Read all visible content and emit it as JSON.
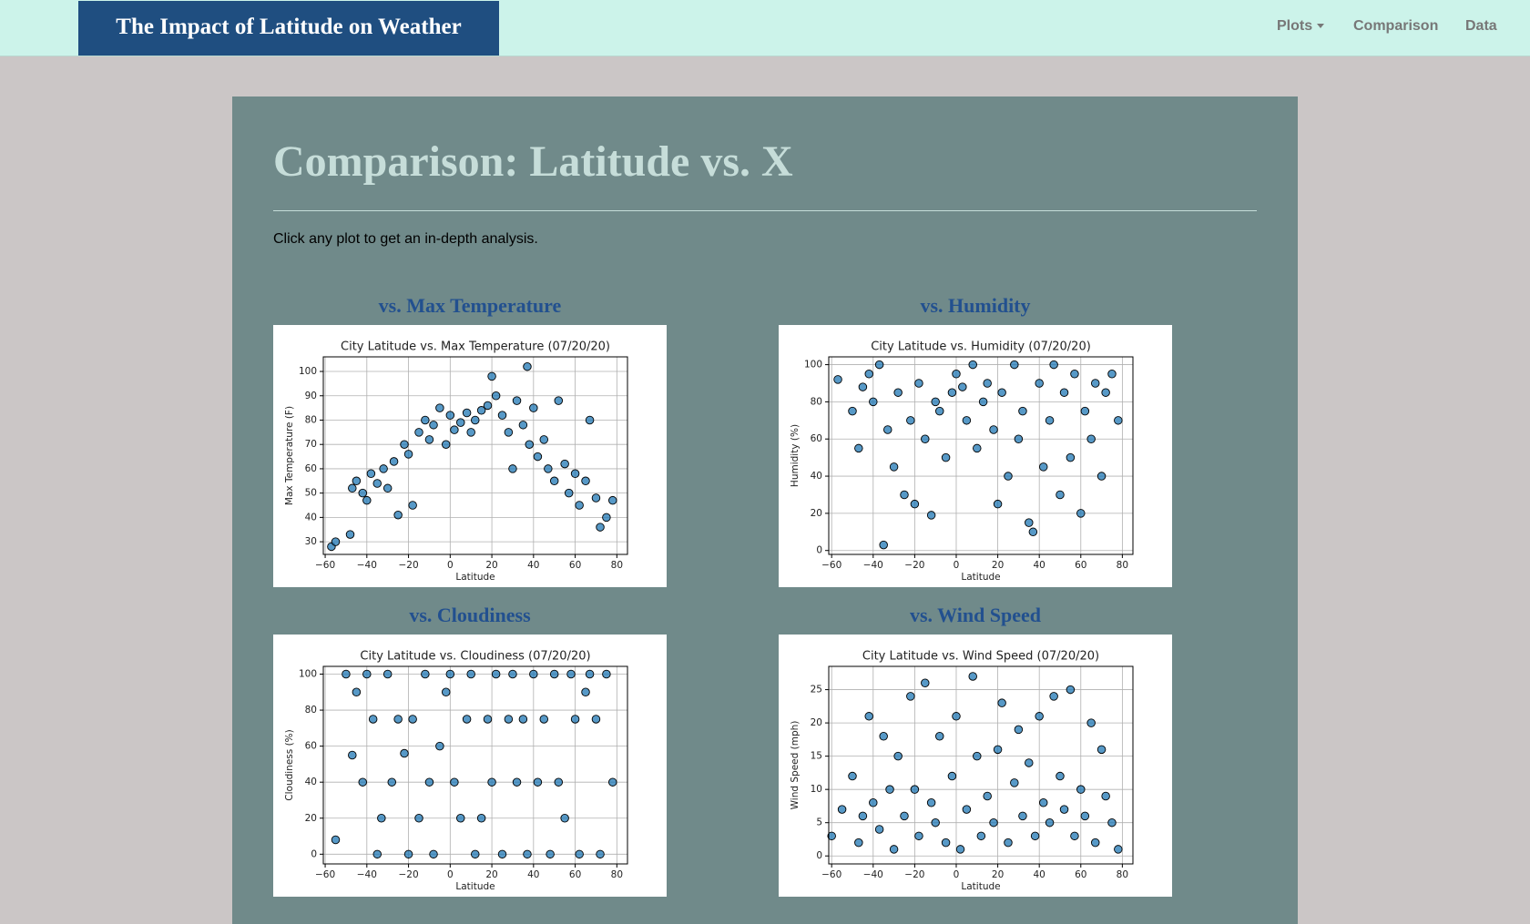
{
  "navbar": {
    "brand": "The Impact of Latitude on Weather",
    "items": [
      "Plots",
      "Comparison",
      "Data"
    ]
  },
  "heading": "Comparison: Latitude vs. X",
  "intro": "Click any plot to get an in-depth analysis.",
  "sections": [
    "vs. Max Temperature",
    "vs. Humidity",
    "vs. Cloudiness",
    "vs. Wind Speed"
  ],
  "chart_data": [
    {
      "type": "scatter",
      "title": "City Latitude vs. Max Temperature (07/20/20)",
      "xlabel": "Latitude",
      "ylabel": "Max Temperature (F)",
      "color": "#1f77b4",
      "grid": true,
      "xlim": [
        -60.9,
        85.1
      ],
      "ylim": [
        24.8,
        106
      ],
      "xticks": [
        {
          "value": -60,
          "label": "−60"
        },
        {
          "value": -40,
          "label": "−40"
        },
        {
          "value": -20,
          "label": "−20"
        },
        0,
        20,
        40,
        60,
        80
      ],
      "yticks": [
        30,
        40,
        50,
        60,
        70,
        80,
        90,
        100
      ],
      "x": [
        -57,
        -55,
        -48,
        -47,
        -45,
        -42,
        -40,
        -38,
        -35,
        -32,
        -30,
        -27,
        -25,
        -22,
        -20,
        -18,
        -15,
        -12,
        -10,
        -8,
        -5,
        -2,
        0,
        2,
        5,
        8,
        10,
        12,
        15,
        18,
        20,
        22,
        25,
        28,
        30,
        32,
        35,
        37,
        38,
        40,
        42,
        45,
        47,
        50,
        52,
        55,
        57,
        60,
        62,
        65,
        67,
        70,
        72,
        75,
        78
      ],
      "values": [
        28,
        30,
        33,
        52,
        55,
        50,
        47,
        58,
        54,
        60,
        52,
        63,
        41,
        70,
        66,
        45,
        75,
        80,
        72,
        78,
        85,
        70,
        82,
        76,
        79,
        83,
        75,
        80,
        84,
        86,
        98,
        90,
        82,
        75,
        60,
        88,
        78,
        102,
        70,
        85,
        65,
        72,
        60,
        55,
        88,
        62,
        50,
        58,
        45,
        55,
        80,
        48,
        36,
        40,
        47
      ]
    },
    {
      "type": "scatter",
      "title": "City Latitude vs. Humidity (07/20/20)",
      "xlabel": "Latitude",
      "ylabel": "Humidity (%)",
      "color": "#1f77b4",
      "grid": true,
      "xlim": [
        -61.4,
        85.1
      ],
      "ylim": [
        -2.1,
        104.2
      ],
      "xticks": [
        {
          "value": -60,
          "label": "−60"
        },
        {
          "value": -40,
          "label": "−40"
        },
        {
          "value": -20,
          "label": "−20"
        },
        0,
        20,
        40,
        60,
        80
      ],
      "yticks": [
        0,
        20,
        40,
        60,
        80,
        100
      ],
      "x": [
        -57,
        -50,
        -47,
        -45,
        -42,
        -40,
        -37,
        -35,
        -33,
        -30,
        -28,
        -25,
        -22,
        -20,
        -18,
        -15,
        -12,
        -10,
        -8,
        -5,
        -2,
        0,
        3,
        5,
        8,
        10,
        13,
        15,
        18,
        20,
        22,
        25,
        28,
        30,
        32,
        35,
        37,
        40,
        42,
        45,
        47,
        50,
        52,
        55,
        57,
        60,
        62,
        65,
        67,
        70,
        72,
        75,
        78
      ],
      "values": [
        92,
        75,
        55,
        88,
        95,
        80,
        100,
        3,
        65,
        45,
        85,
        30,
        70,
        25,
        90,
        60,
        19,
        80,
        75,
        50,
        85,
        95,
        88,
        70,
        100,
        55,
        80,
        90,
        65,
        25,
        85,
        40,
        100,
        60,
        75,
        15,
        10,
        90,
        45,
        70,
        100,
        30,
        85,
        50,
        95,
        20,
        75,
        60,
        90,
        40,
        85,
        95,
        70
      ]
    },
    {
      "type": "scatter",
      "title": "City Latitude vs. Cloudiness (07/20/20)",
      "xlabel": "Latitude",
      "ylabel": "Cloudiness (%)",
      "color": "#1f77b4",
      "grid": true,
      "xlim": [
        -60.9,
        85.1
      ],
      "ylim": [
        -5.4,
        104.3
      ],
      "xticks": [
        {
          "value": -60,
          "label": "−60"
        },
        {
          "value": -40,
          "label": "−40"
        },
        {
          "value": -20,
          "label": "−20"
        },
        0,
        20,
        40,
        60,
        80
      ],
      "yticks": [
        0,
        20,
        40,
        60,
        80,
        100
      ],
      "x": [
        -55,
        -50,
        -47,
        -45,
        -42,
        -40,
        -37,
        -35,
        -33,
        -30,
        -28,
        -25,
        -22,
        -20,
        -18,
        -15,
        -12,
        -10,
        -8,
        -5,
        -2,
        0,
        2,
        5,
        8,
        10,
        12,
        15,
        18,
        20,
        22,
        25,
        28,
        30,
        32,
        35,
        37,
        40,
        42,
        45,
        48,
        50,
        52,
        55,
        58,
        60,
        62,
        65,
        67,
        70,
        72,
        75,
        78
      ],
      "values": [
        8,
        100,
        55,
        90,
        40,
        100,
        75,
        0,
        20,
        100,
        40,
        75,
        56,
        0,
        75,
        20,
        100,
        40,
        0,
        60,
        90,
        100,
        40,
        20,
        75,
        100,
        0,
        20,
        75,
        40,
        100,
        0,
        75,
        100,
        40,
        75,
        0,
        100,
        40,
        75,
        0,
        100,
        40,
        20,
        100,
        75,
        0,
        90,
        100,
        75,
        0,
        100,
        40
      ]
    },
    {
      "type": "scatter",
      "title": "City Latitude vs. Wind Speed (07/20/20)",
      "xlabel": "Latitude",
      "ylabel": "Wind Speed (mph)",
      "color": "#1f77b4",
      "grid": true,
      "xlim": [
        -61.4,
        85.1
      ],
      "ylim": [
        -1.2,
        28.5
      ],
      "xticks": [
        {
          "value": -60,
          "label": "−60"
        },
        {
          "value": -40,
          "label": "−40"
        },
        {
          "value": -20,
          "label": "−20"
        },
        0,
        20,
        40,
        60,
        80
      ],
      "yticks": [
        0,
        5,
        10,
        15,
        20,
        25
      ],
      "x": [
        -60,
        -55,
        -50,
        -47,
        -45,
        -42,
        -40,
        -37,
        -35,
        -32,
        -30,
        -28,
        -25,
        -22,
        -20,
        -18,
        -15,
        -12,
        -10,
        -8,
        -5,
        -2,
        0,
        2,
        5,
        8,
        10,
        12,
        15,
        18,
        20,
        22,
        25,
        28,
        30,
        32,
        35,
        38,
        40,
        42,
        45,
        47,
        50,
        52,
        55,
        57,
        60,
        62,
        65,
        67,
        70,
        72,
        75,
        78
      ],
      "values": [
        3,
        7,
        12,
        2,
        6,
        21,
        8,
        4,
        18,
        10,
        1,
        15,
        6,
        24,
        10,
        3,
        26,
        8,
        5,
        18,
        2,
        12,
        21,
        1,
        7,
        27,
        15,
        3,
        9,
        5,
        16,
        23,
        2,
        11,
        19,
        6,
        14,
        3,
        21,
        8,
        5,
        24,
        12,
        7,
        25,
        3,
        10,
        6,
        20,
        2,
        16,
        9,
        5,
        1
      ]
    }
  ]
}
